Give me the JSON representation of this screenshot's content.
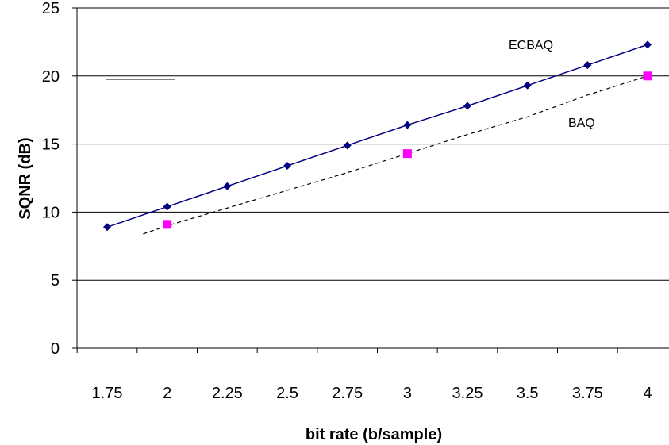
{
  "chart_data": {
    "type": "line",
    "title": "",
    "xlabel": "bit rate (b/sample)",
    "ylabel": "SQNR (dB)",
    "x_ticks": [
      "1.75",
      "2",
      "2.25",
      "2.5",
      "2.75",
      "3",
      "3.25",
      "3.5",
      "3.75",
      "4"
    ],
    "y_ticks": [
      "0",
      "5",
      "10",
      "15",
      "20",
      "25"
    ],
    "ylim": [
      0,
      25
    ],
    "grid": "horizontal",
    "series": [
      {
        "name": "ECBAQ",
        "color": "#000080",
        "marker": "diamond",
        "line_style": "solid",
        "x": [
          1.75,
          2.0,
          2.25,
          2.5,
          2.75,
          3.0,
          3.25,
          3.5,
          3.75,
          4.0
        ],
        "y": [
          8.9,
          10.4,
          11.9,
          13.4,
          14.9,
          16.4,
          17.8,
          19.3,
          20.8,
          22.3
        ]
      },
      {
        "name": "BAQ",
        "color": "#000000",
        "marker_color": "#ff00ff",
        "marker": "square",
        "line_style": "dashed",
        "x": [
          1.9,
          2.0,
          2.25,
          2.5,
          2.75,
          3.0,
          3.25,
          3.5,
          3.75,
          4.0
        ],
        "y": [
          8.4,
          9.0,
          10.3,
          11.6,
          12.9,
          14.3,
          15.7,
          17.0,
          18.6,
          20.0
        ],
        "marked_x": [
          2.0,
          3.0,
          4.0
        ],
        "marked_y": [
          9.1,
          14.3,
          20.0
        ]
      }
    ]
  }
}
